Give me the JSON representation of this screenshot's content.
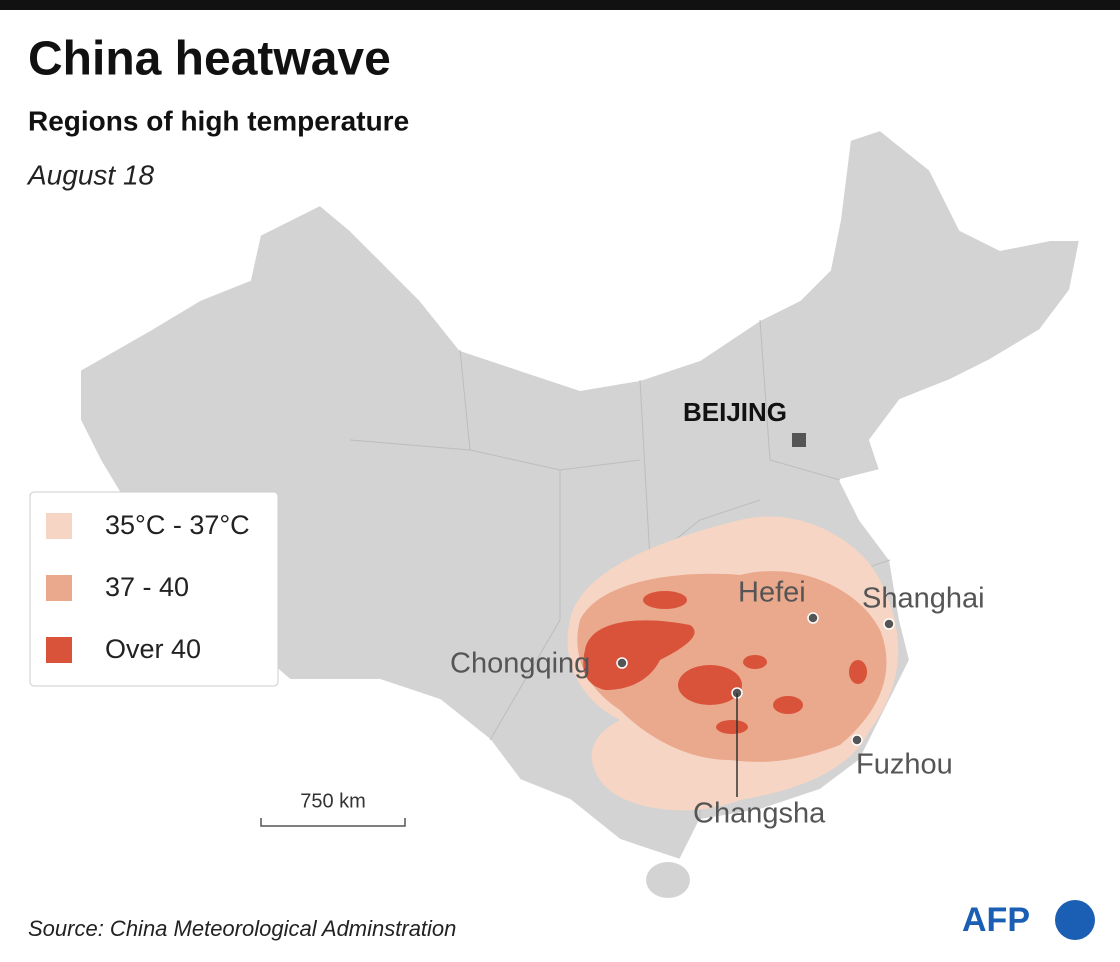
{
  "header": {
    "title": "China heatwave",
    "subtitle": "Regions of high temperature",
    "date": "August 18"
  },
  "legend": [
    {
      "label": "35°C - 37°C",
      "color": "#f6d5c4"
    },
    {
      "label": "37 - 40",
      "color": "#eaa88c"
    },
    {
      "label": "Over 40",
      "color": "#d9533a"
    }
  ],
  "cities": [
    {
      "label": "BEIJING"
    },
    {
      "label": "Hefei"
    },
    {
      "label": "Shanghai"
    },
    {
      "label": "Chongqing"
    },
    {
      "label": "Changsha"
    },
    {
      "label": "Fuzhou"
    }
  ],
  "scale": {
    "label": "750 km"
  },
  "source": "Source: China Meteorological Adminstration",
  "logo": "AFP"
}
